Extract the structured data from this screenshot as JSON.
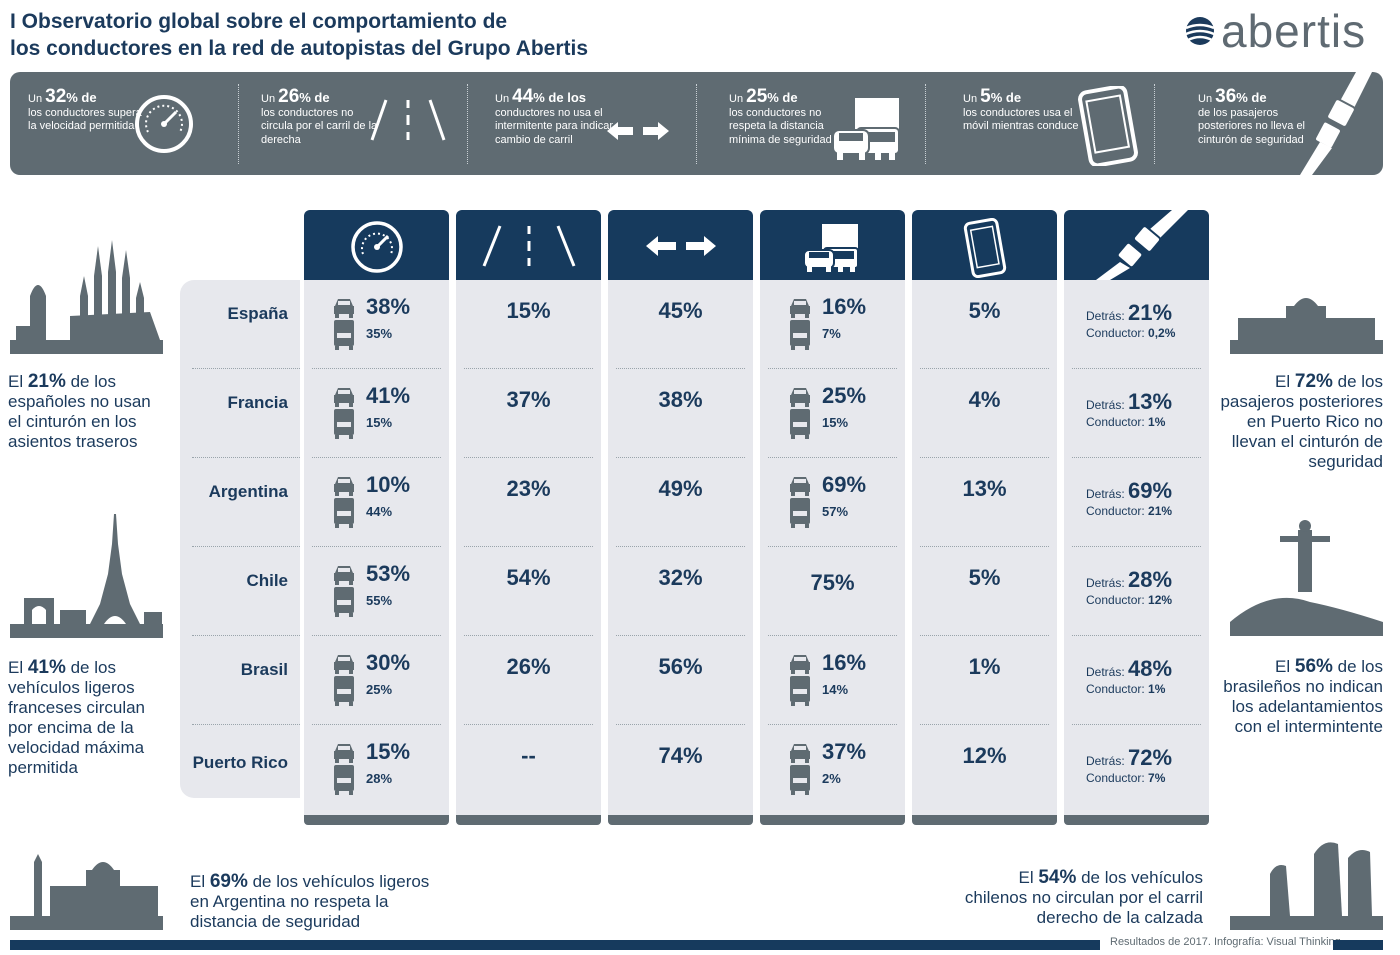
{
  "header": {
    "title_line1": "I Observatorio global sobre el comportamiento de",
    "title_line2": "los conductores en la red de autopistas del Grupo Abertis",
    "logo_text": "abertis"
  },
  "summary": [
    {
      "pre": "Un ",
      "value": "32",
      "pct": "% de",
      "text": "los conductores supera la velocidad permitida",
      "icon": "speedometer-icon"
    },
    {
      "pre": "Un ",
      "value": "26",
      "pct": "% de",
      "text": "los conductores no circula por el carril de la derecha",
      "icon": "lanes-icon"
    },
    {
      "pre": "Un ",
      "value": "44",
      "pct": "% de los",
      "text": "conductores no usa el intermitente para indicar cambio de carril",
      "icon": "arrows-icon"
    },
    {
      "pre": "Un ",
      "value": "25",
      "pct": "% de",
      "text": "los conductores no respeta la distancia mínima de seguridad",
      "icon": "car-truck-icon"
    },
    {
      "pre": "Un ",
      "value": "5",
      "pct": "% de",
      "text": "los conductores usa el móvil mientras conduce",
      "icon": "phone-icon"
    },
    {
      "pre": "Un ",
      "value": "36",
      "pct": "% de",
      "text": "de los pasajeros posteriores no lleva el cinturón de seguridad",
      "icon": "seatbelt-icon"
    }
  ],
  "table": {
    "countries": [
      "España",
      "Francia",
      "Argentina",
      "Chile",
      "Brasil",
      "Puerto Rico"
    ],
    "columns": [
      {
        "key": "speed",
        "icon": "speedometer-icon"
      },
      {
        "key": "lane",
        "icon": "lanes-icon"
      },
      {
        "key": "indicator",
        "icon": "arrows-icon"
      },
      {
        "key": "distance",
        "icon": "car-truck-icon"
      },
      {
        "key": "phone",
        "icon": "phone-icon"
      },
      {
        "key": "seatbelt",
        "icon": "seatbelt-icon"
      }
    ],
    "speed": [
      {
        "car": "38%",
        "truck": "35%"
      },
      {
        "car": "41%",
        "truck": "15%"
      },
      {
        "car": "10%",
        "truck": "44%"
      },
      {
        "car": "53%",
        "truck": "55%"
      },
      {
        "car": "30%",
        "truck": "25%"
      },
      {
        "car": "15%",
        "truck": "28%"
      }
    ],
    "lane": [
      "15%",
      "37%",
      "23%",
      "54%",
      "26%",
      "--"
    ],
    "indicator": [
      "45%",
      "38%",
      "49%",
      "32%",
      "56%",
      "74%"
    ],
    "distance": [
      {
        "car": "16%",
        "truck": "7%"
      },
      {
        "car": "25%",
        "truck": "15%"
      },
      {
        "car": "69%",
        "truck": "57%"
      },
      {
        "car": "75%",
        "truck": ""
      },
      {
        "car": "16%",
        "truck": "14%"
      },
      {
        "car": "37%",
        "truck": "2%"
      }
    ],
    "phone": [
      "5%",
      "4%",
      "13%",
      "5%",
      "1%",
      "12%"
    ],
    "seatbelt": [
      {
        "back_label": "Detrás: ",
        "back": "21%",
        "driver_label": "Conductor: ",
        "driver": "0,2%"
      },
      {
        "back_label": "Detrás: ",
        "back": "13%",
        "driver_label": "Conductor: ",
        "driver": "1%"
      },
      {
        "back_label": "Detrás: ",
        "back": "69%",
        "driver_label": "Conductor: ",
        "driver": "21%"
      },
      {
        "back_label": "Detrás: ",
        "back": "28%",
        "driver_label": "Conductor: ",
        "driver": "12%"
      },
      {
        "back_label": "Detrás: ",
        "back": "48%",
        "driver_label": "Conductor: ",
        "driver": "1%"
      },
      {
        "back_label": "Detrás: ",
        "back": "72%",
        "driver_label": "Conductor: ",
        "driver": "7%"
      }
    ]
  },
  "facts": {
    "spain": {
      "pre": "El ",
      "value": "21%",
      "text": " de los españoles no usan el cinturón en los asientos traseros"
    },
    "france": {
      "pre": "El ",
      "value": "41%",
      "text": " de los vehículos ligeros franceses circulan por encima de la velocidad máxima permitida"
    },
    "argentina": {
      "pre": "El ",
      "value": "69%",
      "text": " de los vehículos ligeros en Argentina no respeta la distancia de seguridad"
    },
    "puertorico": {
      "pre": "El ",
      "value": "72%",
      "text": " de los pasajeros posteriores en Puerto Rico no llevan el cinturón de seguridad"
    },
    "brasil": {
      "pre": "El ",
      "value": "56%",
      "text": " de los brasileños no indican los adelantamientos con el intermintente"
    },
    "chile": {
      "pre": "El ",
      "value": "54%",
      "text": " de los vehículos chilenos no circulan por el carril derecho de la calzada"
    }
  },
  "footer": {
    "credit": "Resultados de 2017. Infografía: Visual Thinking"
  },
  "colors": {
    "navy": "#163a5d",
    "text": "#1b3a5c",
    "slate": "#5f6b72",
    "panel": "#e7e8ed"
  }
}
